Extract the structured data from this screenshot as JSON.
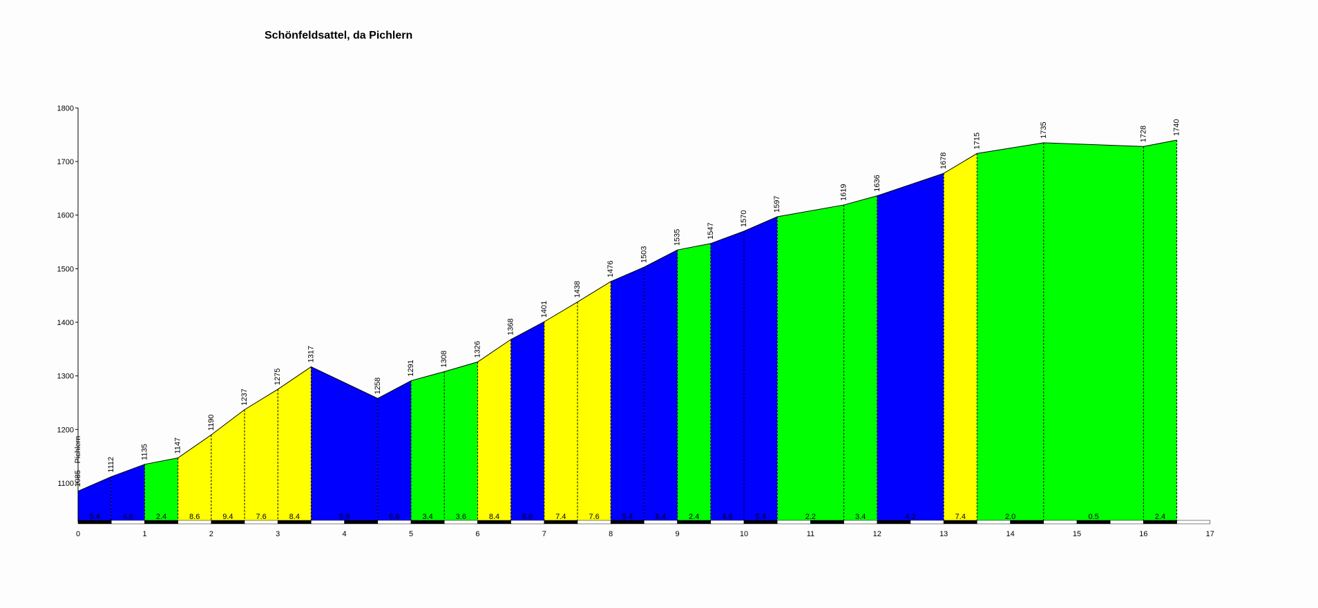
{
  "chart_data": {
    "type": "area",
    "title": "Schönfeldsattel, da Pichlern",
    "xlabel": "",
    "ylabel": "",
    "xlim": [
      0,
      17
    ],
    "ylim": [
      1030,
      1800
    ],
    "x_ticks": [
      "0",
      "1",
      "2",
      "3",
      "4",
      "5",
      "6",
      "7",
      "8",
      "9",
      "10",
      "11",
      "12",
      "13",
      "14",
      "15",
      "16",
      "17"
    ],
    "y_ticks": [
      "1100",
      "1200",
      "1300",
      "1400",
      "1500",
      "1600",
      "1700",
      "1800"
    ],
    "points": [
      {
        "x": 0,
        "y": 1085,
        "label": "1085 - Pichlern"
      },
      {
        "x": 0.5,
        "y": 1112,
        "label": "1112"
      },
      {
        "x": 1.0,
        "y": 1135,
        "label": "1135"
      },
      {
        "x": 1.5,
        "y": 1147,
        "label": "1147"
      },
      {
        "x": 2.0,
        "y": 1190,
        "label": "1190"
      },
      {
        "x": 2.5,
        "y": 1237,
        "label": "1237"
      },
      {
        "x": 3.0,
        "y": 1275,
        "label": "1275"
      },
      {
        "x": 3.5,
        "y": 1317,
        "label": "1317"
      },
      {
        "x": 4.5,
        "y": 1258,
        "label": "1258"
      },
      {
        "x": 5.0,
        "y": 1291,
        "label": "1291"
      },
      {
        "x": 5.5,
        "y": 1308,
        "label": "1308"
      },
      {
        "x": 6.0,
        "y": 1326,
        "label": "1326"
      },
      {
        "x": 6.5,
        "y": 1368,
        "label": "1368"
      },
      {
        "x": 7.0,
        "y": 1401,
        "label": "1401"
      },
      {
        "x": 7.5,
        "y": 1438,
        "label": "1438"
      },
      {
        "x": 8.0,
        "y": 1476,
        "label": "1476"
      },
      {
        "x": 8.5,
        "y": 1503,
        "label": "1503"
      },
      {
        "x": 9.0,
        "y": 1535,
        "label": "1535"
      },
      {
        "x": 9.5,
        "y": 1547,
        "label": "1547"
      },
      {
        "x": 10.0,
        "y": 1570,
        "label": "1570"
      },
      {
        "x": 10.5,
        "y": 1597,
        "label": "1597"
      },
      {
        "x": 11.5,
        "y": 1619,
        "label": "1619"
      },
      {
        "x": 12.0,
        "y": 1636,
        "label": "1636"
      },
      {
        "x": 13.0,
        "y": 1678,
        "label": "1678"
      },
      {
        "x": 13.5,
        "y": 1715,
        "label": "1715"
      },
      {
        "x": 14.5,
        "y": 1735,
        "label": "1735"
      },
      {
        "x": 16.0,
        "y": 1728,
        "label": "1728"
      },
      {
        "x": 16.5,
        "y": 1740,
        "label": "1740"
      }
    ],
    "segments": [
      {
        "x0": 0,
        "x1": 0.5,
        "grade": "5.4",
        "color": "#0000ff"
      },
      {
        "x0": 0.5,
        "x1": 1.0,
        "grade": "4.6",
        "color": "#0000ff"
      },
      {
        "x0": 1.0,
        "x1": 1.5,
        "grade": "2.4",
        "color": "#00ff00"
      },
      {
        "x0": 1.5,
        "x1": 2.0,
        "grade": "8.6",
        "color": "#ffff00"
      },
      {
        "x0": 2.0,
        "x1": 2.5,
        "grade": "9.4",
        "color": "#ffff00"
      },
      {
        "x0": 2.5,
        "x1": 3.0,
        "grade": "7.6",
        "color": "#ffff00"
      },
      {
        "x0": 3.0,
        "x1": 3.5,
        "grade": "8.4",
        "color": "#ffff00"
      },
      {
        "x0": 3.5,
        "x1": 4.5,
        "grade": "5.9",
        "color": "#0000ff"
      },
      {
        "x0": 4.5,
        "x1": 5.0,
        "grade": "6.6",
        "color": "#0000ff"
      },
      {
        "x0": 5.0,
        "x1": 5.5,
        "grade": "3.4",
        "color": "#00ff00"
      },
      {
        "x0": 5.5,
        "x1": 6.0,
        "grade": "3.6",
        "color": "#00ff00"
      },
      {
        "x0": 6.0,
        "x1": 6.5,
        "grade": "8.4",
        "color": "#ffff00"
      },
      {
        "x0": 6.5,
        "x1": 7.0,
        "grade": "6.6",
        "color": "#0000ff"
      },
      {
        "x0": 7.0,
        "x1": 7.5,
        "grade": "7.4",
        "color": "#ffff00"
      },
      {
        "x0": 7.5,
        "x1": 8.0,
        "grade": "7.6",
        "color": "#ffff00"
      },
      {
        "x0": 8.0,
        "x1": 8.5,
        "grade": "5.4",
        "color": "#0000ff"
      },
      {
        "x0": 8.5,
        "x1": 9.0,
        "grade": "6.4",
        "color": "#0000ff"
      },
      {
        "x0": 9.0,
        "x1": 9.5,
        "grade": "2.4",
        "color": "#00ff00"
      },
      {
        "x0": 9.5,
        "x1": 10.0,
        "grade": "4.6",
        "color": "#0000ff"
      },
      {
        "x0": 10.0,
        "x1": 10.5,
        "grade": "5.4",
        "color": "#0000ff"
      },
      {
        "x0": 10.5,
        "x1": 11.5,
        "grade": "2.2",
        "color": "#00ff00"
      },
      {
        "x0": 11.5,
        "x1": 12.0,
        "grade": "3.4",
        "color": "#00ff00"
      },
      {
        "x0": 12.0,
        "x1": 13.0,
        "grade": "4.2",
        "color": "#0000ff"
      },
      {
        "x0": 13.0,
        "x1": 13.5,
        "grade": "7.4",
        "color": "#ffff00"
      },
      {
        "x0": 13.5,
        "x1": 14.5,
        "grade": "2.0",
        "color": "#00ff00"
      },
      {
        "x0": 14.5,
        "x1": 16.0,
        "grade": "0.5",
        "color": "#00ff00"
      },
      {
        "x0": 16.0,
        "x1": 16.5,
        "grade": "2.4",
        "color": "#00ff00"
      }
    ],
    "grid": false,
    "legend": "none"
  }
}
